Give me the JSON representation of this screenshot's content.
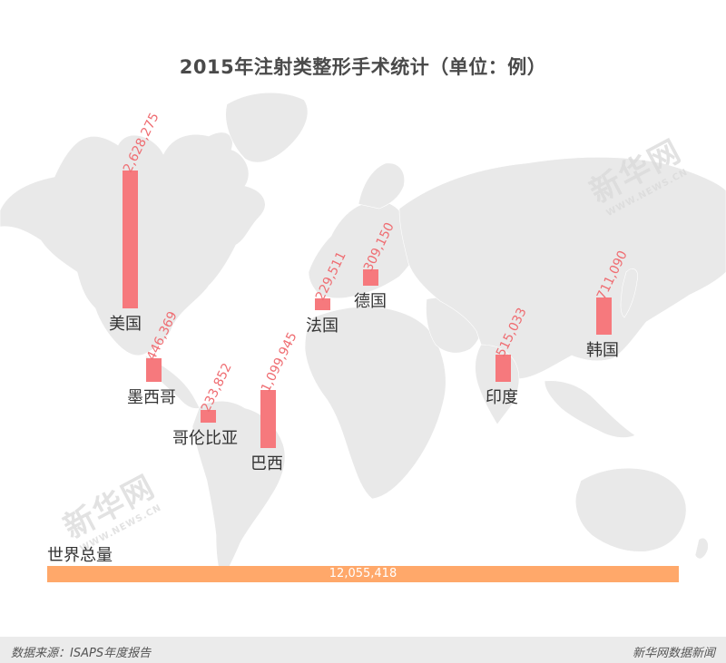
{
  "title": "2015年注射类整形手术统计（单位：例）",
  "chart_data": {
    "type": "bar",
    "categories": [
      "美国",
      "墨西哥",
      "哥伦比亚",
      "巴西",
      "法国",
      "德国",
      "印度",
      "韩国"
    ],
    "values": [
      2628275,
      446369,
      233852,
      1099945,
      229511,
      309150,
      515033,
      711090
    ],
    "value_labels": [
      "2,628,275",
      "446,369",
      "233,852",
      "1,099,945",
      "229,511",
      "309,150",
      "515,033",
      "711,090"
    ],
    "total_label": "世界总量",
    "total_value": 12055418,
    "total_value_label": "12,055,418",
    "colors": {
      "bar": "#f6797d",
      "total_bar": "#ffa86a",
      "map": "#e9e9e9"
    }
  },
  "watermark": {
    "text": "新华网",
    "sub": "WWW.NEWS.CN"
  },
  "footer": {
    "source": "数据来源：ISAPS年度报告",
    "brand": "新华网数据新闻"
  }
}
